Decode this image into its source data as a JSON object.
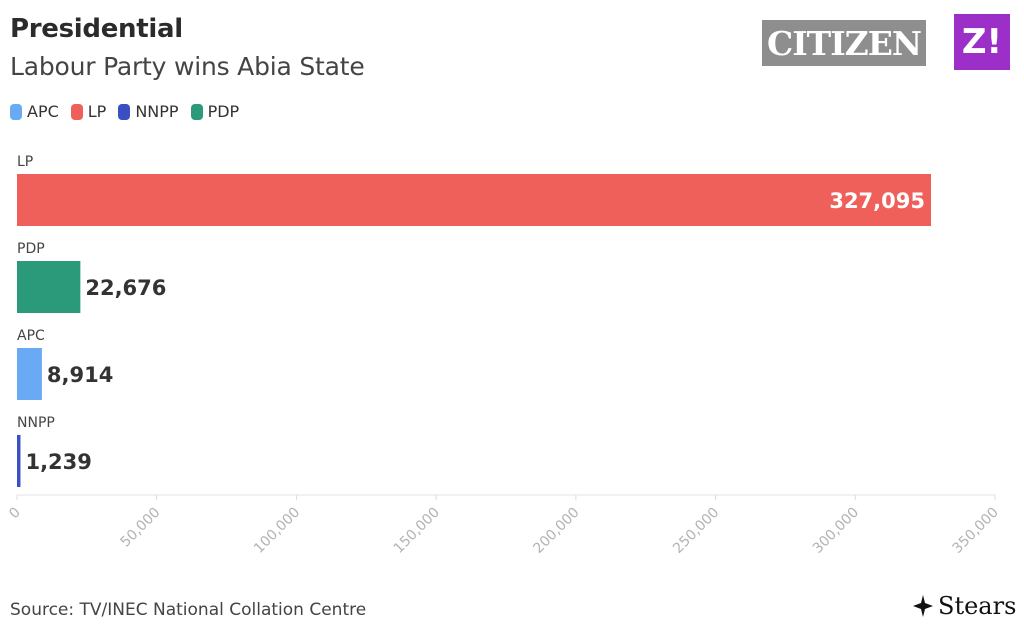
{
  "header": {
    "title": "Presidential",
    "subtitle": "Labour Party wins Abia State"
  },
  "logos": {
    "citizen": "CITIZEN",
    "z": "Z!",
    "stears": "Stears"
  },
  "legend": [
    {
      "label": "APC",
      "color": "#6aaaf5"
    },
    {
      "label": "LP",
      "color": "#f0605a"
    },
    {
      "label": "NNPP",
      "color": "#3b4fc4"
    },
    {
      "label": "PDP",
      "color": "#2a9a7a"
    }
  ],
  "source": "Source: TV/INEC National Collation Centre",
  "chart_data": {
    "type": "bar",
    "orientation": "horizontal",
    "categories": [
      "LP",
      "PDP",
      "APC",
      "NNPP"
    ],
    "values": [
      327095,
      22676,
      8914,
      1239
    ],
    "value_labels": [
      "327,095",
      "22,676",
      "8,914",
      "1,239"
    ],
    "colors": [
      "#f0605a",
      "#2a9a7a",
      "#6aaaf5",
      "#3b4fc4"
    ],
    "xlim": [
      0,
      350000
    ],
    "xticks": [
      0,
      50000,
      100000,
      150000,
      200000,
      250000,
      300000,
      350000
    ],
    "xtick_labels": [
      "0",
      "50,000",
      "100,000",
      "150,000",
      "200,000",
      "250,000",
      "300,000",
      "350,000"
    ],
    "grid": false,
    "legend_position": "top-left"
  }
}
